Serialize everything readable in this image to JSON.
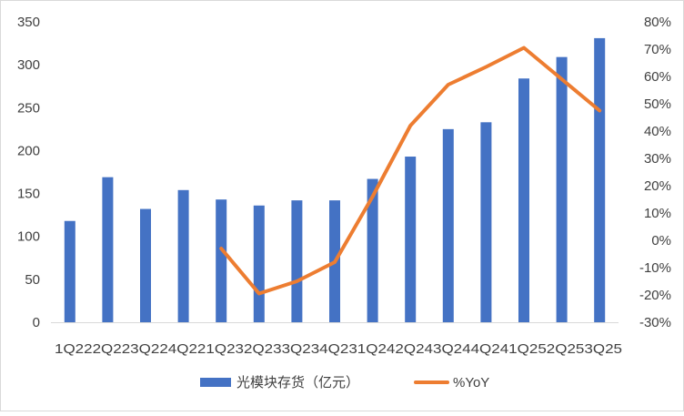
{
  "chart_data": {
    "type": "bar+line",
    "categories": [
      "1Q22",
      "2Q22",
      "3Q22",
      "4Q22",
      "1Q23",
      "2Q23",
      "3Q23",
      "4Q23",
      "1Q24",
      "2Q24",
      "3Q24",
      "4Q24",
      "1Q25",
      "2Q25",
      "3Q25"
    ],
    "category_label_text": [
      "1Q22",
      "2Q22",
      "3Q22",
      "4Q22",
      "1Q23",
      "2Q23",
      "3Q23",
      "4Q23",
      "1Q24",
      "2Q24",
      "3Q24",
      "4Q24",
      "1Q25",
      "2Q25",
      "3Q25"
    ],
    "series": [
      {
        "name": "光模块存货（亿元）",
        "type": "bar",
        "axis": "left",
        "color": "#4472C4",
        "values": [
          118,
          169,
          132,
          154,
          143,
          136,
          142,
          142,
          167,
          193,
          225,
          233,
          284,
          309,
          331
        ]
      },
      {
        "name": "%YoY",
        "type": "line",
        "axis": "right",
        "color": "#ED7D31",
        "values": [
          null,
          null,
          null,
          null,
          -0.03,
          -0.195,
          -0.15,
          -0.08,
          0.16,
          0.42,
          0.57,
          0.635,
          0.705,
          0.59,
          0.475
        ]
      }
    ],
    "y_left": {
      "min": 0,
      "max": 350,
      "ticks": [
        "0",
        "50",
        "100",
        "150",
        "200",
        "250",
        "300",
        "350"
      ],
      "tick_values": [
        0,
        50,
        100,
        150,
        200,
        250,
        300,
        350
      ]
    },
    "y_right": {
      "min": -0.3,
      "max": 0.8,
      "ticks": [
        "-30%",
        "-20%",
        "-10%",
        "0%",
        "10%",
        "20%",
        "30%",
        "40%",
        "50%",
        "60%",
        "70%",
        "80%"
      ],
      "tick_values": [
        -0.3,
        -0.2,
        -0.1,
        0,
        0.1,
        0.2,
        0.3,
        0.4,
        0.5,
        0.6,
        0.7,
        0.8
      ]
    },
    "legend_position": "bottom",
    "grid": false
  }
}
